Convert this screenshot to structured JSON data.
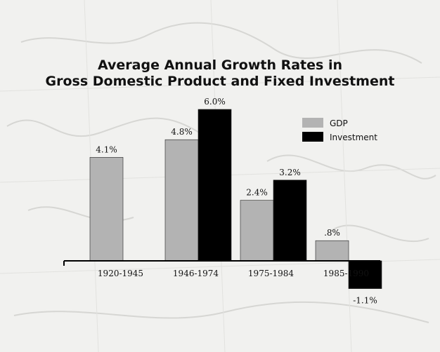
{
  "chart_data": {
    "type": "bar",
    "title_line1": "Average Annual Growth Rates in",
    "title_line2": "Gross Domestic Product and Fixed Investment",
    "categories": [
      "1920-1945",
      "1946-1974",
      "1975-1984",
      "1985-1990"
    ],
    "series": [
      {
        "name": "GDP",
        "color": "#b3b3b3",
        "values": [
          4.1,
          4.8,
          2.4,
          0.8
        ],
        "labels": [
          "4.1%",
          "4.8%",
          "2.4%",
          ".8%"
        ]
      },
      {
        "name": "Investment",
        "color": "#000000",
        "values": [
          null,
          6.0,
          3.2,
          -1.1
        ],
        "labels": [
          "",
          "6.0%",
          "3.2%",
          "-1.1%"
        ]
      }
    ],
    "legend_position": "top-right",
    "xlabel": "",
    "ylabel": "",
    "ylim": [
      -1.5,
      6.5
    ],
    "grid": false
  }
}
